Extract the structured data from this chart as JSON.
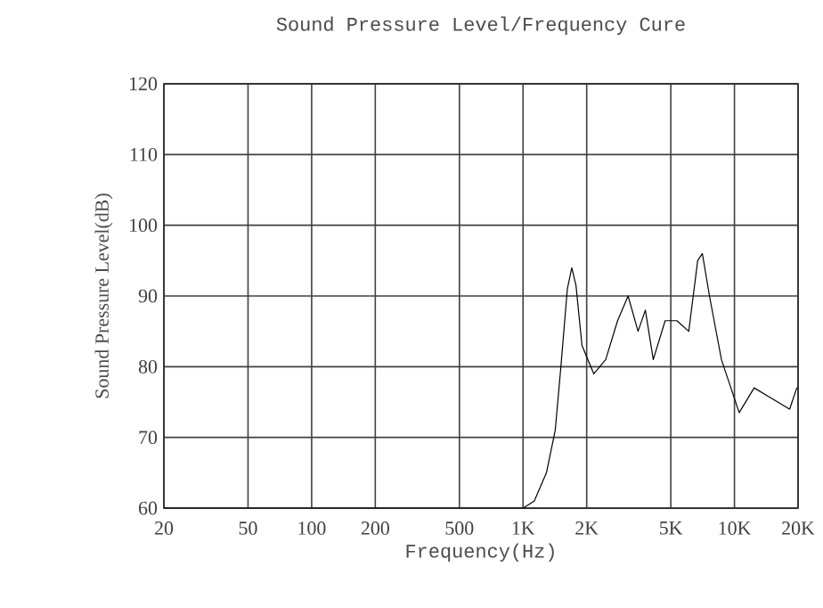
{
  "chart_data": {
    "type": "line",
    "title": "Sound Pressure Level/Frequency Cure",
    "xlabel": "Frequency(Hz)",
    "ylabel": "Sound Pressure Level(dB)",
    "log": "x",
    "grid": true,
    "xlim": [
      20,
      20000
    ],
    "ylim": [
      60,
      120
    ],
    "xticks": [
      {
        "value": 20,
        "label": "20"
      },
      {
        "value": 50,
        "label": "50"
      },
      {
        "value": 100,
        "label": "100"
      },
      {
        "value": 200,
        "label": "200"
      },
      {
        "value": 500,
        "label": "500"
      },
      {
        "value": 1000,
        "label": "1K"
      },
      {
        "value": 2000,
        "label": "2K"
      },
      {
        "value": 5000,
        "label": "5K"
      },
      {
        "value": 10000,
        "label": "10K"
      },
      {
        "value": 20000,
        "label": "20K"
      }
    ],
    "yticks": [
      60,
      70,
      80,
      90,
      100,
      110,
      120
    ],
    "series": [
      {
        "color": "#000000",
        "x": [
          20,
          1000,
          1130,
          1290,
          1420,
          1510,
          1620,
          1700,
          1780,
          1900,
          2160,
          2460,
          2800,
          3140,
          3500,
          3790,
          4130,
          4700,
          5340,
          6080,
          6700,
          7050,
          7620,
          8680,
          10530,
          12390,
          15030,
          18240,
          19720
        ],
        "values": [
          60,
          60,
          61,
          65,
          71,
          80,
          91,
          94,
          91.5,
          83,
          79,
          81,
          86.5,
          90,
          85,
          88,
          81,
          86.5,
          86.5,
          85,
          95,
          96,
          90,
          81,
          73.5,
          77,
          75.5,
          74,
          77
        ]
      }
    ]
  }
}
